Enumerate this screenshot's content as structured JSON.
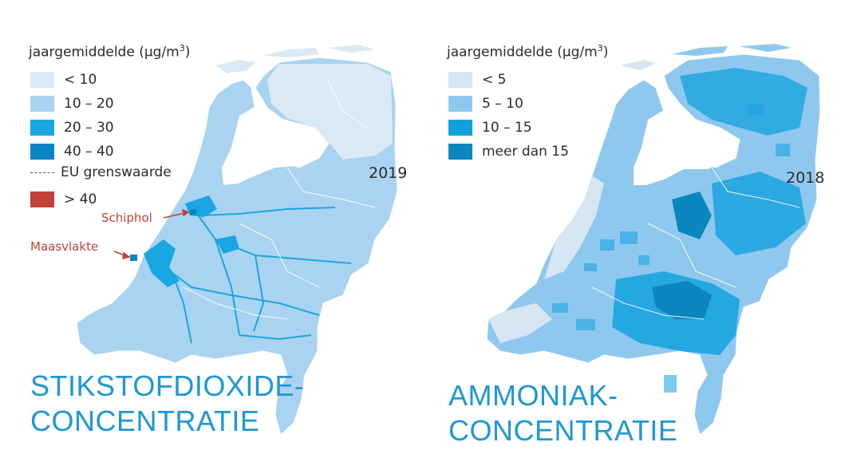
{
  "left": {
    "legend_title": "jaargemiddelde (μg/m",
    "legend_title_sup": "3",
    "legend_title_close": ")",
    "legend": [
      {
        "label": "< 10",
        "color": "#dbe9f4"
      },
      {
        "label": "10 – 20",
        "color": "#a9d3f0"
      },
      {
        "label": "20 – 30",
        "color": "#1aa6e0"
      },
      {
        "label": "40 – 40",
        "color": "#0a84c4"
      }
    ],
    "eu_label": "EU grenswaarde",
    "over40": {
      "label": "> 40",
      "color": "#c0423a"
    },
    "year": "2019",
    "annotations": {
      "schiphol": "Schiphol",
      "maasvlakte": "Maasvlakte"
    },
    "title_line1": "STIKSTOFDIOXIDE-",
    "title_line2": "CONCENTRATIE"
  },
  "right": {
    "legend_title": "jaargemiddelde (μg/m",
    "legend_title_sup": "3",
    "legend_title_close": ")",
    "legend": [
      {
        "label": "< 5",
        "color": "#d6e6f3"
      },
      {
        "label": "5 – 10",
        "color": "#8fc8ee"
      },
      {
        "label": "10 – 15",
        "color": "#13a1de"
      },
      {
        "label": "meer dan 15",
        "color": "#0b86bf"
      }
    ],
    "year": "2018",
    "title_line1": "AMMONIAK-",
    "title_line2": "CONCENTRATIE"
  }
}
